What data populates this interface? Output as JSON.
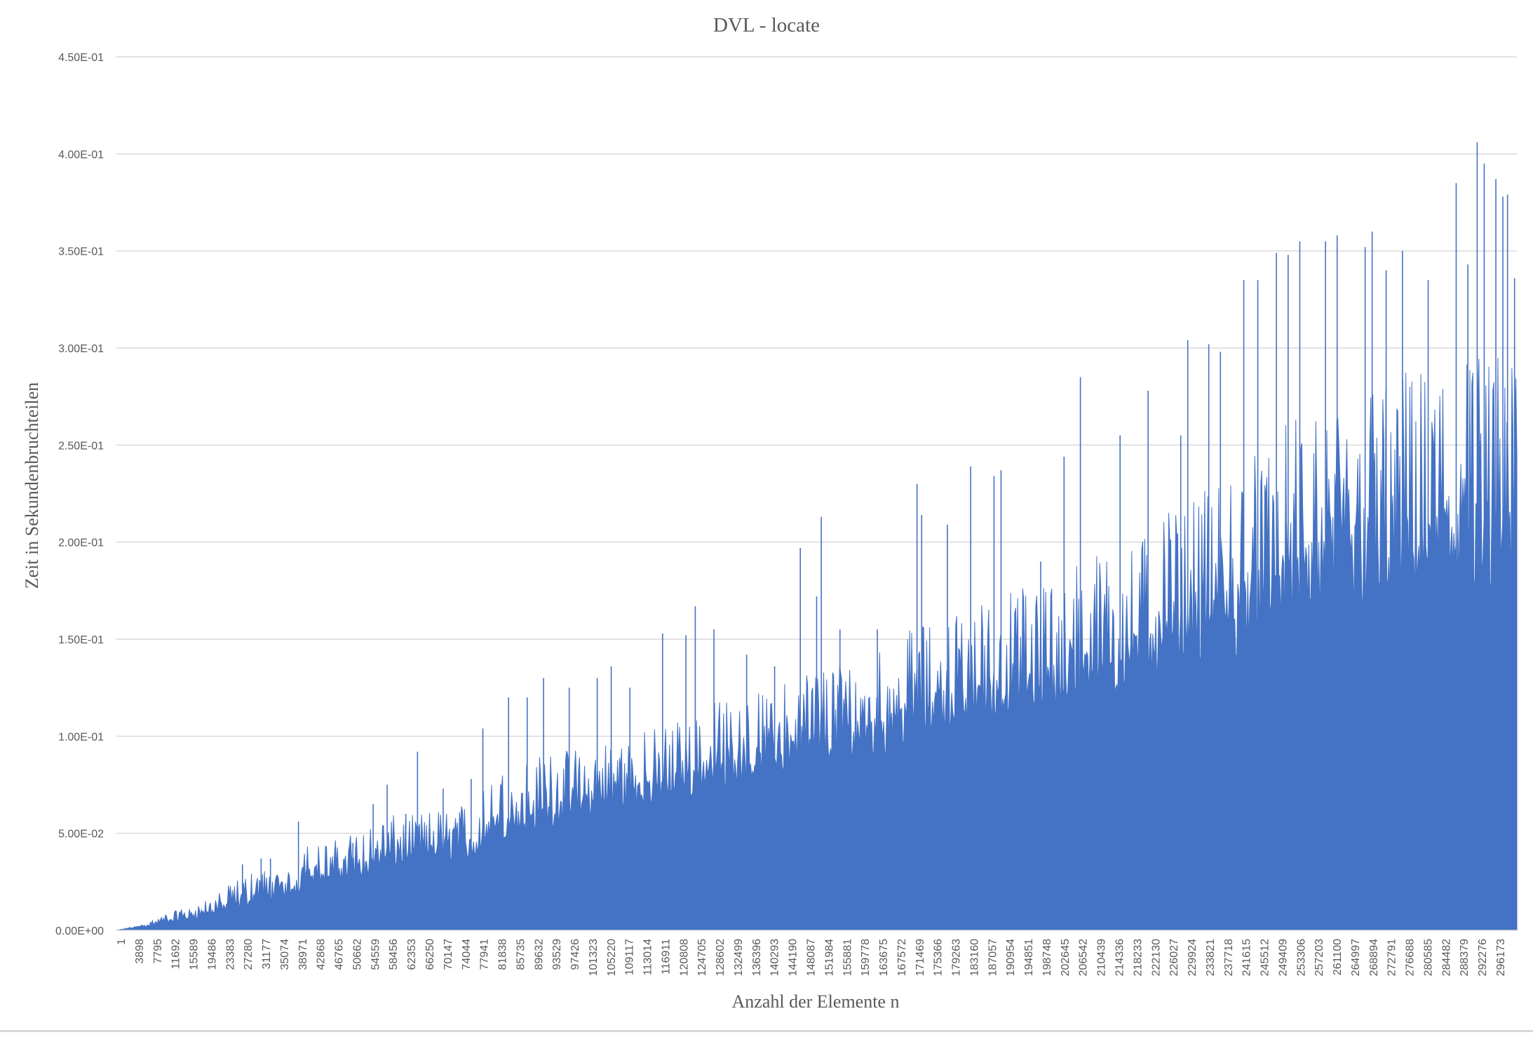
{
  "chart_data": {
    "type": "area",
    "title": "DVL - locate",
    "xlabel": "Anzahl der Elemente n",
    "ylabel": "Zeit in Sekundenbruchteilen",
    "ylim": [
      0,
      0.45
    ],
    "y_ticks": [
      {
        "value": 0,
        "label": "0.00E+00"
      },
      {
        "value": 0.05,
        "label": "5.00E-02"
      },
      {
        "value": 0.1,
        "label": "1.00E-01"
      },
      {
        "value": 0.15,
        "label": "1.50E-01"
      },
      {
        "value": 0.2,
        "label": "2.00E-01"
      },
      {
        "value": 0.25,
        "label": "2.50E-01"
      },
      {
        "value": 0.3,
        "label": "3.00E-01"
      },
      {
        "value": 0.35,
        "label": "3.50E-01"
      },
      {
        "value": 0.4,
        "label": "4.00E-01"
      },
      {
        "value": 0.45,
        "label": "4.50E-01"
      }
    ],
    "xlim": [
      1,
      300000
    ],
    "x_tick_labels": [
      "1",
      "3898",
      "7795",
      "11692",
      "15589",
      "19486",
      "23383",
      "27280",
      "31177",
      "35074",
      "38971",
      "42868",
      "46765",
      "50662",
      "54559",
      "58456",
      "62353",
      "66250",
      "70147",
      "74044",
      "77941",
      "81838",
      "85735",
      "89632",
      "93529",
      "97426",
      "101323",
      "105220",
      "109117",
      "113014",
      "116911",
      "120808",
      "124705",
      "128602",
      "132499",
      "136396",
      "140293",
      "144190",
      "148087",
      "151984",
      "155881",
      "159778",
      "163675",
      "167572",
      "171469",
      "175366",
      "179263",
      "183160",
      "187057",
      "190954",
      "194851",
      "198748",
      "202645",
      "206542",
      "210439",
      "214336",
      "218233",
      "222130",
      "226027",
      "229924",
      "233821",
      "237718",
      "241615",
      "245512",
      "249409",
      "253306",
      "257203",
      "261100",
      "264997",
      "268894",
      "272791",
      "276688",
      "280585",
      "284482",
      "288379",
      "292276",
      "296173"
    ],
    "grid": "horizontal",
    "legend": "none",
    "series": [
      {
        "color": "#4472c4",
        "baseline_points": [
          [
            1,
            0.0
          ],
          [
            5000,
            0.0015
          ],
          [
            10000,
            0.003
          ],
          [
            15000,
            0.005
          ],
          [
            20000,
            0.007
          ],
          [
            25000,
            0.009
          ],
          [
            30000,
            0.013
          ],
          [
            35000,
            0.016
          ],
          [
            38971,
            0.017
          ],
          [
            40000,
            0.025
          ],
          [
            45000,
            0.023
          ],
          [
            50000,
            0.025
          ],
          [
            55000,
            0.028
          ],
          [
            60000,
            0.031
          ],
          [
            65000,
            0.033
          ],
          [
            70000,
            0.035
          ],
          [
            75000,
            0.036
          ],
          [
            78000,
            0.037
          ],
          [
            80000,
            0.045
          ],
          [
            85000,
            0.047
          ],
          [
            90000,
            0.05
          ],
          [
            95000,
            0.052
          ],
          [
            100000,
            0.055
          ],
          [
            105000,
            0.058
          ],
          [
            110000,
            0.06
          ],
          [
            115000,
            0.063
          ],
          [
            120000,
            0.066
          ],
          [
            125000,
            0.07
          ],
          [
            130000,
            0.072
          ],
          [
            135000,
            0.075
          ],
          [
            140000,
            0.078
          ],
          [
            145000,
            0.08
          ],
          [
            150000,
            0.082
          ],
          [
            155000,
            0.085
          ],
          [
            160000,
            0.088
          ],
          [
            165000,
            0.09
          ],
          [
            170000,
            0.095
          ],
          [
            175000,
            0.1
          ],
          [
            180000,
            0.1
          ],
          [
            185000,
            0.103
          ],
          [
            190000,
            0.105
          ],
          [
            195000,
            0.108
          ],
          [
            200000,
            0.11
          ],
          [
            205000,
            0.113
          ],
          [
            210000,
            0.116
          ],
          [
            215000,
            0.12
          ],
          [
            220000,
            0.125
          ],
          [
            225000,
            0.13
          ],
          [
            230000,
            0.135
          ],
          [
            235000,
            0.138
          ],
          [
            240000,
            0.14
          ],
          [
            245000,
            0.145
          ],
          [
            250000,
            0.15
          ],
          [
            255000,
            0.152
          ],
          [
            260000,
            0.155
          ],
          [
            265000,
            0.158
          ],
          [
            270000,
            0.16
          ],
          [
            275000,
            0.162
          ],
          [
            280000,
            0.165
          ],
          [
            285000,
            0.167
          ],
          [
            290000,
            0.168
          ],
          [
            295000,
            0.168
          ],
          [
            300000,
            0.165
          ]
        ],
        "upper_points": [
          [
            1,
            0.0
          ],
          [
            5000,
            0.003
          ],
          [
            10000,
            0.008
          ],
          [
            15000,
            0.012
          ],
          [
            20000,
            0.016
          ],
          [
            25000,
            0.025
          ],
          [
            30000,
            0.032
          ],
          [
            35000,
            0.03
          ],
          [
            38971,
            0.03
          ],
          [
            40000,
            0.05
          ],
          [
            45000,
            0.045
          ],
          [
            50000,
            0.05
          ],
          [
            55000,
            0.055
          ],
          [
            60000,
            0.06
          ],
          [
            65000,
            0.06
          ],
          [
            70000,
            0.065
          ],
          [
            75000,
            0.068
          ],
          [
            78000,
            0.07
          ],
          [
            80000,
            0.08
          ],
          [
            85000,
            0.085
          ],
          [
            90000,
            0.09
          ],
          [
            95000,
            0.093
          ],
          [
            100000,
            0.095
          ],
          [
            105000,
            0.1
          ],
          [
            110000,
            0.1
          ],
          [
            115000,
            0.105
          ],
          [
            120000,
            0.11
          ],
          [
            125000,
            0.115
          ],
          [
            130000,
            0.12
          ],
          [
            135000,
            0.12
          ],
          [
            140000,
            0.125
          ],
          [
            145000,
            0.13
          ],
          [
            150000,
            0.14
          ],
          [
            155000,
            0.14
          ],
          [
            160000,
            0.145
          ],
          [
            165000,
            0.15
          ],
          [
            170000,
            0.155
          ],
          [
            175000,
            0.16
          ],
          [
            180000,
            0.165
          ],
          [
            185000,
            0.17
          ],
          [
            190000,
            0.175
          ],
          [
            195000,
            0.18
          ],
          [
            200000,
            0.185
          ],
          [
            205000,
            0.19
          ],
          [
            210000,
            0.195
          ],
          [
            215000,
            0.2
          ],
          [
            220000,
            0.21
          ],
          [
            225000,
            0.215
          ],
          [
            230000,
            0.22
          ],
          [
            235000,
            0.23
          ],
          [
            240000,
            0.24
          ],
          [
            245000,
            0.25
          ],
          [
            250000,
            0.26
          ],
          [
            255000,
            0.27
          ],
          [
            260000,
            0.275
          ],
          [
            265000,
            0.28
          ],
          [
            270000,
            0.285
          ],
          [
            275000,
            0.29
          ],
          [
            280000,
            0.29
          ],
          [
            285000,
            0.3
          ],
          [
            290000,
            0.3
          ],
          [
            295000,
            0.3
          ],
          [
            300000,
            0.29
          ]
        ],
        "spikes": [
          [
            27000,
            0.034
          ],
          [
            31000,
            0.037
          ],
          [
            33000,
            0.037
          ],
          [
            39000,
            0.056
          ],
          [
            50662,
            0.045
          ],
          [
            55000,
            0.065
          ],
          [
            58000,
            0.075
          ],
          [
            62000,
            0.06
          ],
          [
            64500,
            0.092
          ],
          [
            70000,
            0.073
          ],
          [
            76000,
            0.078
          ],
          [
            78500,
            0.104
          ],
          [
            84000,
            0.12
          ],
          [
            88000,
            0.12
          ],
          [
            91500,
            0.13
          ],
          [
            97000,
            0.125
          ],
          [
            103000,
            0.13
          ],
          [
            106000,
            0.136
          ],
          [
            110000,
            0.125
          ],
          [
            117000,
            0.153
          ],
          [
            122000,
            0.152
          ],
          [
            124000,
            0.167
          ],
          [
            128000,
            0.155
          ],
          [
            135000,
            0.142
          ],
          [
            141000,
            0.136
          ],
          [
            146500,
            0.197
          ],
          [
            150000,
            0.172
          ],
          [
            151000,
            0.213
          ],
          [
            155000,
            0.155
          ],
          [
            163000,
            0.155
          ],
          [
            171500,
            0.23
          ],
          [
            172500,
            0.214
          ],
          [
            178000,
            0.209
          ],
          [
            183000,
            0.239
          ],
          [
            188000,
            0.234
          ],
          [
            189500,
            0.237
          ],
          [
            198000,
            0.19
          ],
          [
            203000,
            0.244
          ],
          [
            206500,
            0.285
          ],
          [
            215000,
            0.255
          ],
          [
            221000,
            0.278
          ],
          [
            228000,
            0.255
          ],
          [
            229500,
            0.304
          ],
          [
            234000,
            0.302
          ],
          [
            236500,
            0.298
          ],
          [
            241500,
            0.335
          ],
          [
            244500,
            0.335
          ],
          [
            248500,
            0.349
          ],
          [
            251000,
            0.348
          ],
          [
            253500,
            0.355
          ],
          [
            259000,
            0.355
          ],
          [
            261500,
            0.358
          ],
          [
            267500,
            0.352
          ],
          [
            269000,
            0.36
          ],
          [
            272000,
            0.34
          ],
          [
            275500,
            0.35
          ],
          [
            281000,
            0.335
          ],
          [
            287000,
            0.385
          ],
          [
            289500,
            0.343
          ],
          [
            291500,
            0.406
          ],
          [
            293000,
            0.395
          ],
          [
            295500,
            0.387
          ],
          [
            297000,
            0.378
          ],
          [
            298000,
            0.379
          ],
          [
            299500,
            0.336
          ]
        ]
      }
    ]
  }
}
